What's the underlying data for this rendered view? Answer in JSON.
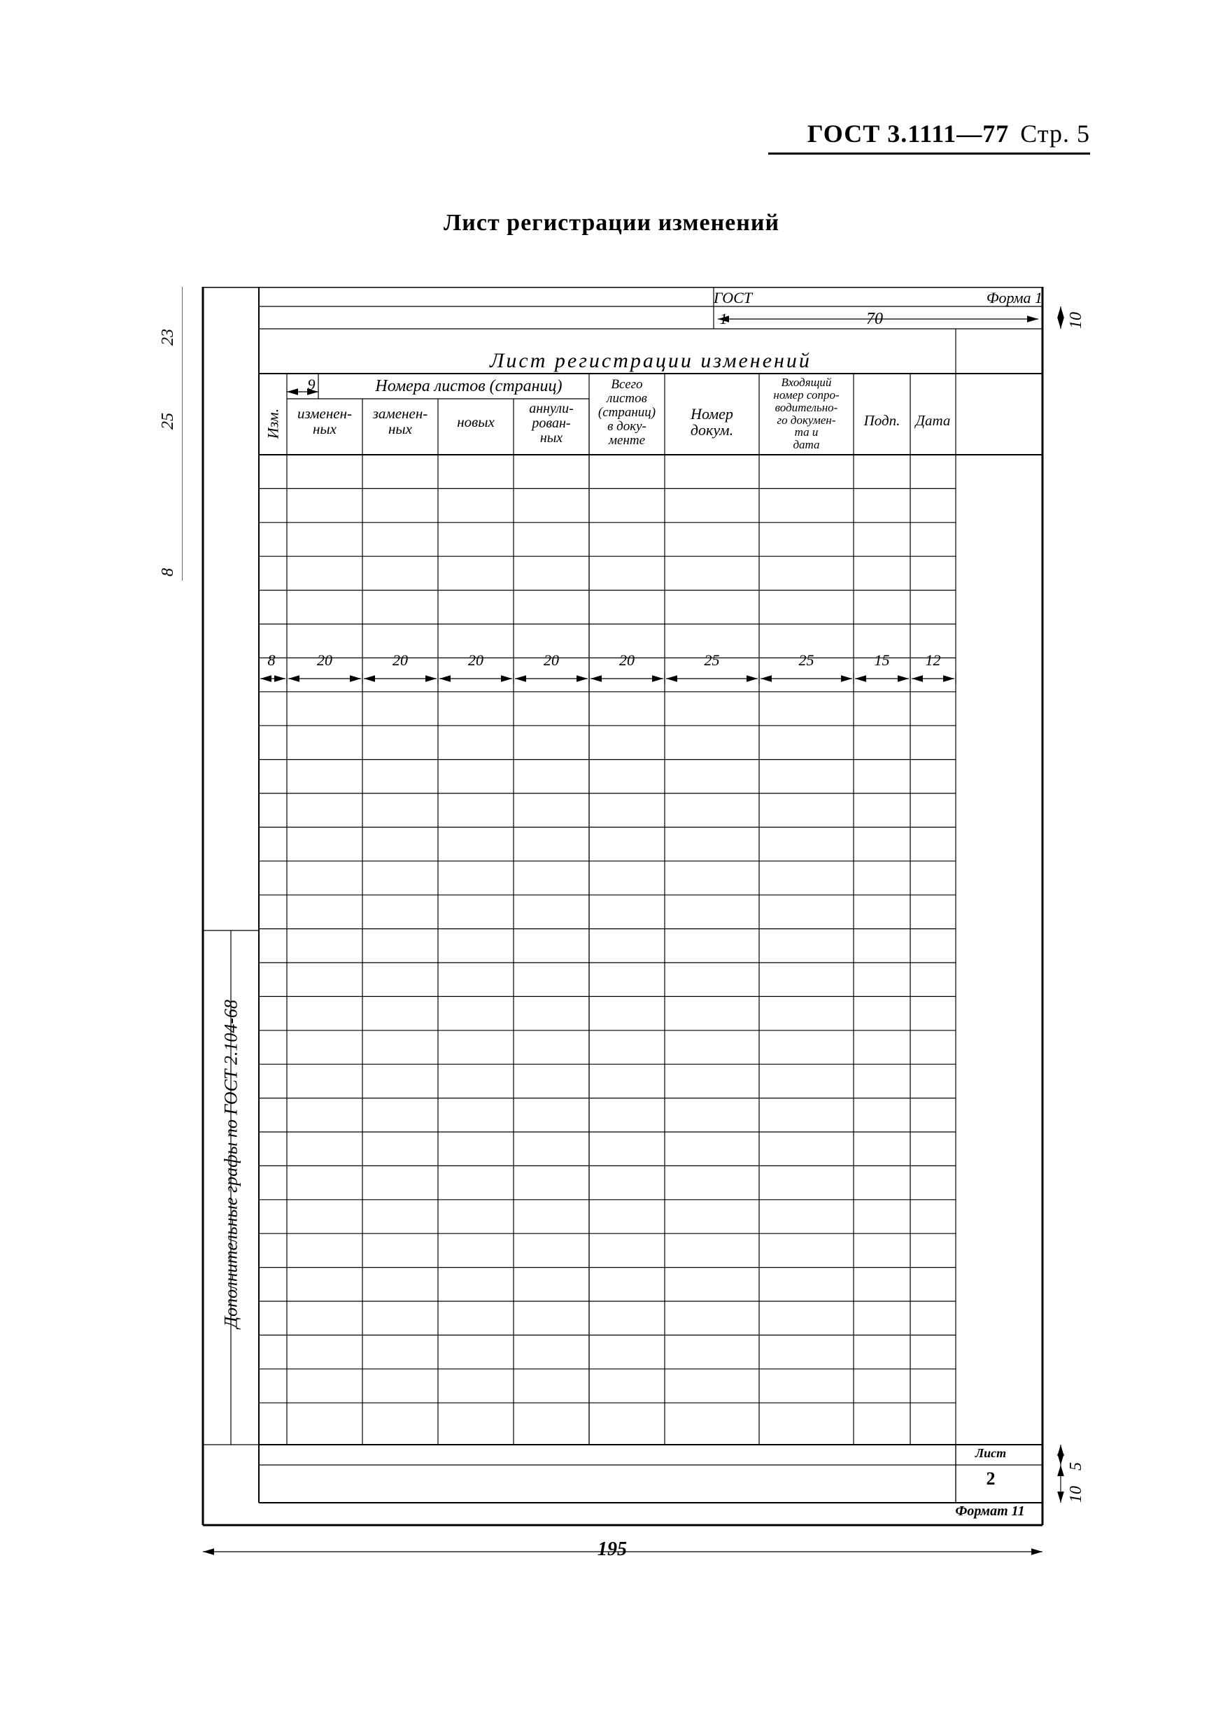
{
  "header": {
    "standard": "ГОСТ 3.1111—77",
    "page": "Стр. 5"
  },
  "title": "Лист регистрации изменений",
  "form_label_top": "ГОСТ",
  "form_label_right": "Форма 1",
  "inner_title": "Лист регистрации изменений",
  "side_note": "Дополнительные графы по ГОСТ 2.104-68",
  "columns": {
    "izm": "Изм.",
    "group": "Номера листов (страниц)",
    "c1": "изменен-\nных",
    "c2": "заменен-\nных",
    "c3": "новых",
    "c4": "аннули-\nрован-\nных",
    "total": "Всего\nлистов\n(страниц)\nв доку-\nменте",
    "docnum": "Номер\nдокум.",
    "incoming": "Входящий\nномер сопро-\nводительно-\nго докумен-\nта и\nдата",
    "sign": "Подп.",
    "date": "Дата"
  },
  "dims": {
    "h_top": "23",
    "h_head": "25",
    "row": "8",
    "r10a": "10",
    "r5": "5",
    "r10b": "10",
    "col_small": "9",
    "col_izm": "8",
    "c20": "20",
    "c25": "25",
    "c15": "15",
    "c12": "12",
    "c70": "70",
    "c1b": "1",
    "total_w": "195"
  },
  "footer_cell": "2",
  "footer_note": "Лист",
  "format_note": "Формат 11",
  "body_rows": 28,
  "style": {
    "line_thin": 1.2,
    "line_med": 2,
    "line_thick": 3,
    "text_color": "#000000",
    "bg": "#ffffff"
  }
}
